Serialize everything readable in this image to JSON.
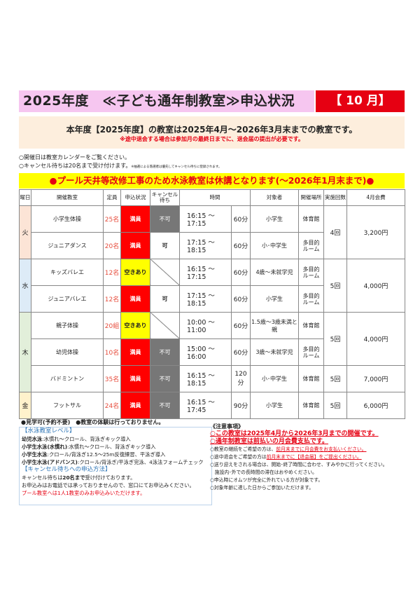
{
  "header": {
    "title": "2025年度　≪子ども通年制教室≫申込状況",
    "month": "【 10 月】"
  },
  "info": {
    "line1": "本年度【2025年度】の教室は2025年4月～2026年3月末までの教室です。",
    "line2": "※途中退会する場合は参加月の最終日までに、退会届の提出が必要です。"
  },
  "notes": {
    "n1": "○開催日は教室カレンダーをご覧ください。",
    "n2": "○キャンセル待ちは20名まで受け付けます。",
    "n2_small": "※抽選による落選者は優先してキャンセル待ちに登録されます。"
  },
  "banner": "●プール天井等改修工事のため水泳教室は休講となります(～2026年1月末まで)●",
  "table": {
    "headers": [
      "曜日",
      "開催教室",
      "定員",
      "申込状況",
      "キャンセル待ち",
      "時間",
      "",
      "対象者",
      "開催場所",
      "実施回数",
      "4月会費"
    ],
    "days": [
      {
        "day": "火",
        "color": "#fce4d6",
        "groups": [
          {
            "sessions": "4回",
            "fee": "3,200円",
            "classes": [
              {
                "name": "小学生体操",
                "capacity": "25名",
                "status": "満員",
                "status_type": "full",
                "waitlist": "不可",
                "time": "16:15 ～ 17:15",
                "duration": "60分",
                "target": "小学生",
                "venue": "体育館"
              },
              {
                "name": "ジュニアダンス",
                "capacity": "20名",
                "status": "満員",
                "status_type": "full",
                "waitlist": "可",
                "time": "17:15 ～ 18:15",
                "duration": "60分",
                "target": "小･中学生",
                "venue": "多目的ルーム"
              }
            ]
          }
        ]
      },
      {
        "day": "水",
        "color": "#ddebf7",
        "groups": [
          {
            "sessions": "5回",
            "fee": "4,000円",
            "classes": [
              {
                "name": "キッズバレエ",
                "capacity": "12名",
                "status": "空きあり",
                "status_type": "open",
                "waitlist": null,
                "time": "16:15 ～ 17:15",
                "duration": "60分",
                "target": "4歳～未就学児",
                "venue": "多目的ルーム"
              },
              {
                "name": "ジュニアバレエ",
                "capacity": "12名",
                "status": "満員",
                "status_type": "full",
                "waitlist": "可",
                "time": "17:15 ～ 18:15",
                "duration": "60分",
                "target": "小学生",
                "venue": "多目的ルーム"
              }
            ]
          }
        ]
      },
      {
        "day": "木",
        "color": "#e2efda",
        "groups": [
          {
            "sessions": "5回",
            "fee": "4,000円",
            "classes": [
              {
                "name": "親子体操",
                "capacity": "20組",
                "status": "空きあり",
                "status_type": "open",
                "waitlist": null,
                "time": "10:00 ～ 11:00",
                "duration": "60分",
                "target": "1.5歳～3歳未満と親",
                "venue": "体育館"
              },
              {
                "name": "幼児体操",
                "capacity": "10名",
                "status": "満員",
                "status_type": "full",
                "waitlist": "不可",
                "time": "15:00 ～ 16:00",
                "duration": "60分",
                "target": "3歳～未就学児",
                "venue": "多目的ルーム"
              }
            ]
          },
          {
            "sessions": "5回",
            "fee": "7,000円",
            "classes": [
              {
                "name": "バドミントン",
                "capacity": "35名",
                "status": "満員",
                "status_type": "full",
                "waitlist": "不可",
                "time": "16:15 ～ 18:15",
                "duration": "120分",
                "target": "小･中学生",
                "venue": "体育館"
              }
            ]
          }
        ]
      },
      {
        "day": "金",
        "color": "#fff2cc",
        "groups": [
          {
            "sessions": "5回",
            "fee": "6,000円",
            "classes": [
              {
                "name": "フットサル",
                "capacity": "24名",
                "status": "満員",
                "status_type": "full",
                "waitlist": "不可",
                "time": "16:15 ～ 17:45",
                "duration": "90分",
                "target": "小学生",
                "venue": "体育館"
              }
            ]
          }
        ]
      }
    ]
  },
  "footer_left": {
    "top": "●見学可(予約不要)　●教室の体験は行っておりません。",
    "swim_heading": "【水泳教室レベル】",
    "swim": [
      {
        "label": "幼児水泳",
        "text": ":水慣れ～クロール、背泳ぎキック導入"
      },
      {
        "label": "小学生水泳(水慣れ)",
        "text": ":水慣れ～クロール、背泳ぎキック導入"
      },
      {
        "label": "小学生水泳",
        "text": ":クロール/背泳ぎ12.5～25m反復練習、平泳ぎ導入"
      },
      {
        "label": "小学生水泳(アドバンス)",
        "text": ":クロール/背泳ぎ/平泳ぎ完泳、4泳法フォームチェック"
      }
    ],
    "wait_heading": "【キャンセル待ちへの申込方法】",
    "wait1_a": "キャンセル待ちは",
    "wait1_b": "20名まで",
    "wait1_c": "受け付けております。",
    "wait2": "お申込みはお電話では承っておりませんので、窓口にてお申込みください。",
    "wait3": "プール教室へは1人1教室のみお申込みいただけます。"
  },
  "footer_right": {
    "heading": "《注意事項》",
    "big1": "○この教室は2025年4月から2026年3月までの開催です。",
    "big2": "○通年制教室は前払いの月会費支払です。",
    "l1_a": "○教室の継続をご希望の方は、",
    "l1_b": "前月末までに月会費をお支払いください。",
    "l2_a": "○途中退会をご希望の方は",
    "l2_b": "前月末までに【退会届】をご提出ください。",
    "l3": "○送り迎えをされる場合は、開始･終了時間に合わせ、すみやかに行ってください。",
    "l4": "　施設内･外での長時間の滞在はおやめください。",
    "l5": "○申込時にオムツが完全に外れている方が対象です。",
    "l6": "○対象年齢に達した日からご参加いただけます。"
  }
}
